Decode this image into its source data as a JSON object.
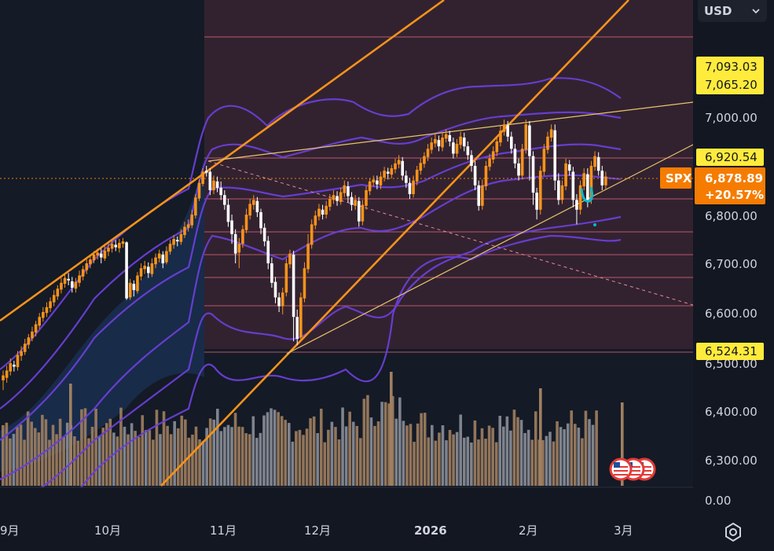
{
  "currency_selector": {
    "label": "USD",
    "icon": "chevron-down-icon"
  },
  "symbol_tag": {
    "symbol": "SPX",
    "price": "6,878.89",
    "change": "+20.57%"
  },
  "price_badges": {
    "b1": "7,093.03",
    "b2": "7,065.20",
    "b3": "6,920.54",
    "b4": "6,524.31",
    "b5": "6,500.00"
  },
  "axis_labels": {
    "y1": "7,000.00",
    "y2": "6,800.00",
    "y3": "6,700.00",
    "y4": "6,600.00",
    "y5": "6,400.00",
    "y6": "6,300.00",
    "y7": "0.00"
  },
  "x_labels": {
    "m9": "9月",
    "m10": "10月",
    "m11": "11月",
    "m12": "12月",
    "y2026": "2026",
    "m2": "2月",
    "m3": "3月"
  },
  "colors": {
    "background": "#131722",
    "up": "#f7931a",
    "down": "#ffffff",
    "band": "#6a3fd6",
    "trend": "#f7931a",
    "badge_yellow": "#ffeb3b",
    "symbol_badge": "#f57c00",
    "zone": "#4a2a38"
  },
  "events": {
    "icon": "us-flag-icon",
    "count": 3
  },
  "chart_data": {
    "type": "candlestick",
    "symbol": "SPX",
    "currency": "USD",
    "ylim": [
      6250,
      7150
    ],
    "x_tick_labels": [
      "9月",
      "10月",
      "11月",
      "12月",
      "2026",
      "2月",
      "3月"
    ],
    "y_tick_labels": [
      "6,300.00",
      "6,400.00",
      "6,500.00",
      "6,600.00",
      "6,700.00",
      "6,800.00",
      "7,000.00"
    ],
    "last_price": 6878.89,
    "change_pct": "+20.57%",
    "horizontal_levels": [
      7093.03,
      7065.2,
      6920.54,
      6524.31
    ],
    "grid": false,
    "overlays": [
      "bollinger bands (3 envelopes)",
      "trend channel lines",
      "horizontal level lines",
      "volume histogram"
    ],
    "candles": [
      [
        6460,
        6470,
        6440,
        6480,
        "o"
      ],
      [
        6465,
        6480,
        6455,
        6490,
        "o"
      ],
      [
        6478,
        6495,
        6470,
        6505,
        "o"
      ],
      [
        6492,
        6488,
        6478,
        6500,
        "w"
      ],
      [
        6487,
        6512,
        6480,
        6520,
        "o"
      ],
      [
        6510,
        6520,
        6500,
        6530,
        "o"
      ],
      [
        6518,
        6535,
        6512,
        6545,
        "o"
      ],
      [
        6533,
        6548,
        6525,
        6555,
        "o"
      ],
      [
        6546,
        6560,
        6540,
        6570,
        "o"
      ],
      [
        6558,
        6575,
        6550,
        6582,
        "o"
      ],
      [
        6572,
        6590,
        6565,
        6598,
        "o"
      ],
      [
        6588,
        6600,
        6580,
        6610,
        "o"
      ],
      [
        6598,
        6610,
        6590,
        6620,
        "o"
      ],
      [
        6608,
        6622,
        6600,
        6630,
        "o"
      ],
      [
        6620,
        6635,
        6612,
        6645,
        "o"
      ],
      [
        6632,
        6648,
        6625,
        6655,
        "o"
      ],
      [
        6646,
        6660,
        6638,
        6670,
        "o"
      ],
      [
        6658,
        6670,
        6650,
        6680,
        "o"
      ],
      [
        6668,
        6665,
        6655,
        6680,
        "w"
      ],
      [
        6663,
        6650,
        6640,
        6672,
        "w"
      ],
      [
        6648,
        6662,
        6640,
        6670,
        "o"
      ],
      [
        6660,
        6675,
        6652,
        6685,
        "o"
      ],
      [
        6673,
        6688,
        6665,
        6695,
        "o"
      ],
      [
        6686,
        6700,
        6678,
        6708,
        "o"
      ],
      [
        6698,
        6708,
        6690,
        6715,
        "o"
      ],
      [
        6706,
        6718,
        6700,
        6725,
        "o"
      ],
      [
        6716,
        6722,
        6708,
        6730,
        "o"
      ],
      [
        6720,
        6712,
        6700,
        6730,
        "w"
      ],
      [
        6710,
        6726,
        6705,
        6735,
        "o"
      ],
      [
        6724,
        6732,
        6715,
        6740,
        "o"
      ],
      [
        6730,
        6740,
        6722,
        6748,
        "o"
      ],
      [
        6738,
        6733,
        6725,
        6748,
        "w"
      ],
      [
        6731,
        6742,
        6722,
        6750,
        "o"
      ],
      [
        6740,
        6745,
        6732,
        6752,
        "o"
      ],
      [
        6743,
        6628,
        6625,
        6745,
        "w"
      ],
      [
        6630,
        6660,
        6625,
        6668,
        "o"
      ],
      [
        6658,
        6645,
        6632,
        6665,
        "w"
      ],
      [
        6643,
        6675,
        6638,
        6682,
        "o"
      ],
      [
        6673,
        6690,
        6665,
        6700,
        "o"
      ],
      [
        6688,
        6695,
        6678,
        6705,
        "o"
      ],
      [
        6693,
        6680,
        6670,
        6702,
        "w"
      ],
      [
        6678,
        6700,
        6672,
        6710,
        "o"
      ],
      [
        6698,
        6712,
        6690,
        6720,
        "o"
      ],
      [
        6710,
        6720,
        6702,
        6728,
        "o"
      ],
      [
        6718,
        6700,
        6690,
        6725,
        "w"
      ],
      [
        6702,
        6725,
        6698,
        6735,
        "o"
      ],
      [
        6724,
        6740,
        6718,
        6748,
        "o"
      ],
      [
        6738,
        6750,
        6730,
        6758,
        "o"
      ],
      [
        6748,
        6745,
        6735,
        6755,
        "w"
      ],
      [
        6744,
        6760,
        6738,
        6770,
        "o"
      ],
      [
        6758,
        6775,
        6752,
        6785,
        "o"
      ],
      [
        6773,
        6780,
        6765,
        6790,
        "o"
      ],
      [
        6778,
        6800,
        6772,
        6810,
        "o"
      ],
      [
        6798,
        6835,
        6792,
        6842,
        "o"
      ],
      [
        6833,
        6865,
        6828,
        6872,
        "o"
      ],
      [
        6863,
        6888,
        6858,
        6895,
        "o"
      ],
      [
        6886,
        6890,
        6878,
        6900,
        "w"
      ],
      [
        6888,
        6850,
        6840,
        6895,
        "w"
      ],
      [
        6850,
        6870,
        6842,
        6880,
        "o"
      ],
      [
        6868,
        6855,
        6846,
        6878,
        "w"
      ],
      [
        6855,
        6840,
        6830,
        6868,
        "w"
      ],
      [
        6840,
        6820,
        6810,
        6850,
        "w"
      ],
      [
        6820,
        6785,
        6775,
        6832,
        "w"
      ],
      [
        6788,
        6760,
        6740,
        6800,
        "w"
      ],
      [
        6760,
        6720,
        6700,
        6770,
        "w"
      ],
      [
        6722,
        6740,
        6690,
        6752,
        "o"
      ],
      [
        6740,
        6770,
        6732,
        6778,
        "o"
      ],
      [
        6768,
        6800,
        6762,
        6812,
        "o"
      ],
      [
        6798,
        6822,
        6790,
        6832,
        "o"
      ],
      [
        6820,
        6830,
        6810,
        6840,
        "o"
      ],
      [
        6828,
        6805,
        6795,
        6836,
        "w"
      ],
      [
        6805,
        6772,
        6760,
        6812,
        "w"
      ],
      [
        6773,
        6745,
        6735,
        6782,
        "w"
      ],
      [
        6746,
        6700,
        6688,
        6756,
        "w"
      ],
      [
        6700,
        6660,
        6650,
        6712,
        "w"
      ],
      [
        6662,
        6630,
        6618,
        6672,
        "w"
      ],
      [
        6630,
        6612,
        6600,
        6640,
        "w"
      ],
      [
        6612,
        6640,
        6595,
        6650,
        "o"
      ],
      [
        6640,
        6700,
        6632,
        6710,
        "o"
      ],
      [
        6698,
        6720,
        6690,
        6728,
        "o"
      ],
      [
        6718,
        6590,
        6540,
        6726,
        "w"
      ],
      [
        6590,
        6545,
        6532,
        6605,
        "w"
      ],
      [
        6548,
        6630,
        6540,
        6640,
        "o"
      ],
      [
        6628,
        6690,
        6620,
        6702,
        "o"
      ],
      [
        6688,
        6740,
        6680,
        6760,
        "o"
      ],
      [
        6738,
        6780,
        6730,
        6790,
        "o"
      ],
      [
        6778,
        6798,
        6770,
        6808,
        "o"
      ],
      [
        6796,
        6812,
        6788,
        6822,
        "o"
      ],
      [
        6810,
        6800,
        6790,
        6820,
        "w"
      ],
      [
        6800,
        6818,
        6792,
        6828,
        "o"
      ],
      [
        6816,
        6832,
        6808,
        6842,
        "o"
      ],
      [
        6830,
        6840,
        6822,
        6850,
        "o"
      ],
      [
        6838,
        6828,
        6818,
        6848,
        "w"
      ],
      [
        6826,
        6846,
        6820,
        6855,
        "o"
      ],
      [
        6844,
        6860,
        6836,
        6870,
        "o"
      ],
      [
        6858,
        6838,
        6825,
        6868,
        "w"
      ],
      [
        6836,
        6820,
        6808,
        6846,
        "w"
      ],
      [
        6818,
        6830,
        6810,
        6840,
        "o"
      ],
      [
        6828,
        6786,
        6775,
        6836,
        "w"
      ],
      [
        6786,
        6820,
        6778,
        6830,
        "o"
      ],
      [
        6818,
        6850,
        6810,
        6858,
        "o"
      ],
      [
        6848,
        6868,
        6840,
        6875,
        "o"
      ],
      [
        6866,
        6872,
        6858,
        6880,
        "o"
      ],
      [
        6870,
        6862,
        6852,
        6880,
        "w"
      ],
      [
        6860,
        6878,
        6852,
        6888,
        "o"
      ],
      [
        6876,
        6890,
        6868,
        6898,
        "o"
      ],
      [
        6888,
        6884,
        6872,
        6896,
        "w"
      ],
      [
        6882,
        6895,
        6874,
        6902,
        "o"
      ],
      [
        6893,
        6905,
        6885,
        6915,
        "o"
      ],
      [
        6903,
        6912,
        6895,
        6922,
        "o"
      ],
      [
        6910,
        6880,
        6870,
        6918,
        "w"
      ],
      [
        6880,
        6865,
        6855,
        6890,
        "w"
      ],
      [
        6865,
        6842,
        6832,
        6875,
        "w"
      ],
      [
        6842,
        6870,
        6835,
        6880,
        "o"
      ],
      [
        6868,
        6892,
        6860,
        6900,
        "o"
      ],
      [
        6890,
        6906,
        6882,
        6915,
        "o"
      ],
      [
        6904,
        6920,
        6896,
        6928,
        "o"
      ],
      [
        6918,
        6935,
        6910,
        6945,
        "o"
      ],
      [
        6933,
        6948,
        6925,
        6958,
        "o"
      ],
      [
        6946,
        6955,
        6938,
        6965,
        "o"
      ],
      [
        6953,
        6940,
        6930,
        6962,
        "w"
      ],
      [
        6938,
        6958,
        6930,
        6968,
        "o"
      ],
      [
        6956,
        6965,
        6948,
        6975,
        "o"
      ],
      [
        6963,
        6950,
        6940,
        6972,
        "w"
      ],
      [
        6948,
        6925,
        6915,
        6958,
        "w"
      ],
      [
        6925,
        6945,
        6918,
        6955,
        "o"
      ],
      [
        6943,
        6960,
        6935,
        6970,
        "o"
      ],
      [
        6958,
        6940,
        6930,
        6968,
        "w"
      ],
      [
        6940,
        6922,
        6912,
        6950,
        "w"
      ],
      [
        6922,
        6900,
        6888,
        6932,
        "w"
      ],
      [
        6900,
        6860,
        6850,
        6910,
        "w"
      ],
      [
        6860,
        6818,
        6808,
        6870,
        "w"
      ],
      [
        6818,
        6860,
        6810,
        6872,
        "o"
      ],
      [
        6858,
        6900,
        6850,
        6910,
        "o"
      ],
      [
        6898,
        6915,
        6890,
        6925,
        "o"
      ],
      [
        6913,
        6930,
        6905,
        6940,
        "o"
      ],
      [
        6928,
        6950,
        6920,
        6960,
        "o"
      ],
      [
        6948,
        6972,
        6940,
        6982,
        "o"
      ],
      [
        6970,
        6985,
        6962,
        6995,
        "o"
      ],
      [
        6983,
        6960,
        6950,
        6992,
        "w"
      ],
      [
        6960,
        6935,
        6925,
        6970,
        "w"
      ],
      [
        6935,
        6905,
        6895,
        6945,
        "w"
      ],
      [
        6905,
        6880,
        6870,
        6915,
        "w"
      ],
      [
        6880,
        6935,
        6872,
        6945,
        "o"
      ],
      [
        6933,
        6985,
        6925,
        6995,
        "o"
      ],
      [
        6983,
        6920,
        6870,
        6992,
        "w"
      ],
      [
        6920,
        6845,
        6820,
        6930,
        "w"
      ],
      [
        6845,
        6810,
        6790,
        6855,
        "w"
      ],
      [
        6810,
        6890,
        6800,
        6900,
        "o"
      ],
      [
        6888,
        6935,
        6880,
        6945,
        "o"
      ],
      [
        6933,
        6960,
        6925,
        6970,
        "o"
      ],
      [
        6958,
        6975,
        6950,
        6985,
        "o"
      ],
      [
        6973,
        6870,
        6850,
        6985,
        "w"
      ],
      [
        6870,
        6830,
        6820,
        6885,
        "w"
      ],
      [
        6830,
        6860,
        6822,
        6870,
        "o"
      ],
      [
        6858,
        6905,
        6850,
        6915,
        "o"
      ],
      [
        6903,
        6890,
        6880,
        6912,
        "w"
      ],
      [
        6888,
        6830,
        6815,
        6898,
        "w"
      ],
      [
        6830,
        6810,
        6780,
        6842,
        "w"
      ],
      [
        6810,
        6860,
        6800,
        6870,
        "o"
      ],
      [
        6858,
        6885,
        6850,
        6895,
        "o"
      ],
      [
        6883,
        6830,
        6815,
        6895,
        "w"
      ],
      [
        6830,
        6900,
        6822,
        6910,
        "o"
      ],
      [
        6898,
        6920,
        6890,
        6930,
        "o"
      ],
      [
        6918,
        6890,
        6880,
        6928,
        "w"
      ],
      [
        6890,
        6860,
        6850,
        6900,
        "w"
      ],
      [
        6860,
        6878,
        6852,
        6888,
        "o"
      ]
    ]
  }
}
